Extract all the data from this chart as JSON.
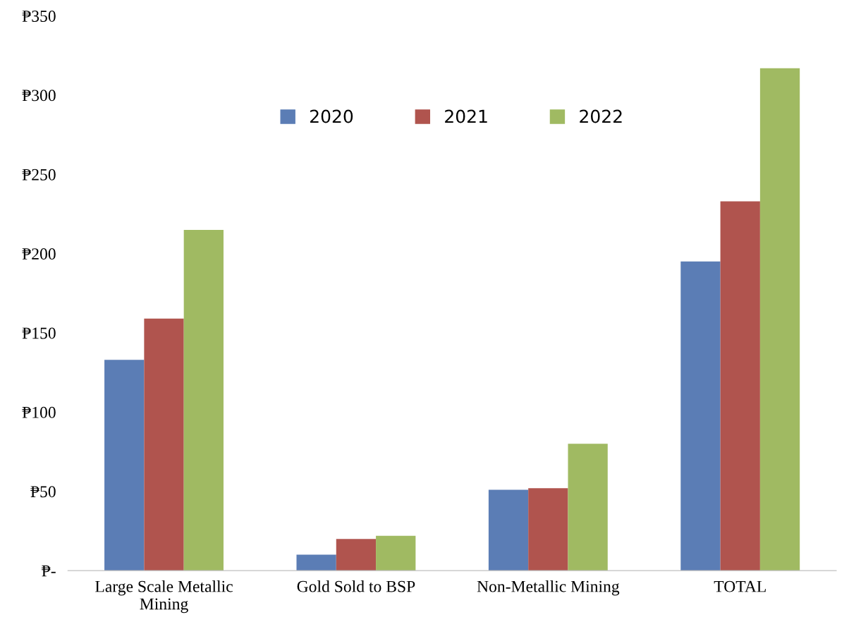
{
  "chart_data": {
    "type": "bar",
    "categories": [
      "Large Scale Metallic\nMining",
      "Gold Sold to BSP",
      "Non-Metallic Mining",
      "TOTAL"
    ],
    "series": [
      {
        "name": "2020",
        "color": "#5b7db5",
        "values": [
          133,
          10,
          51,
          195
        ]
      },
      {
        "name": "2021",
        "color": "#b0544e",
        "values": [
          159,
          20,
          52,
          233
        ]
      },
      {
        "name": "2022",
        "color": "#a0ba62",
        "values": [
          215,
          22,
          80,
          317
        ]
      }
    ],
    "ylim": [
      0,
      350
    ],
    "yticks": [
      {
        "value": 0,
        "label": "₱-"
      },
      {
        "value": 50,
        "label": "₱50"
      },
      {
        "value": 100,
        "label": "₱100"
      },
      {
        "value": 150,
        "label": "₱150"
      },
      {
        "value": 200,
        "label": "₱200"
      },
      {
        "value": 250,
        "label": "₱250"
      },
      {
        "value": 300,
        "label": "₱300"
      },
      {
        "value": 350,
        "label": "₱350"
      }
    ],
    "grid": false,
    "legend": "top"
  }
}
